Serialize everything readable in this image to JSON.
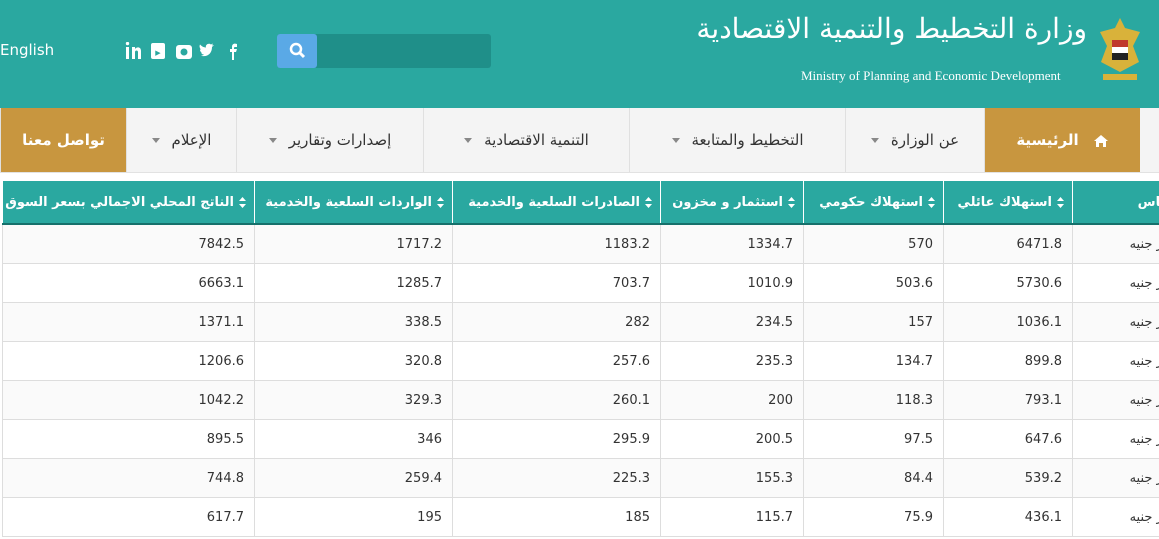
{
  "header": {
    "language_link": "English",
    "ministry_name_ar": "وزارة التخطيط والتنمية الاقتصادية",
    "ministry_name_en": "Ministry of Planning and Economic Development"
  },
  "nav": {
    "items": [
      "الرئيسية",
      "عن الوزارة",
      "التخطيط والمتابعة",
      "التنمية الاقتصادية",
      "إصدارات وتقارير",
      "الإعلام"
    ],
    "contact": "تواصل معنا"
  },
  "table": {
    "columns": [
      "القياس",
      "استهلاك عائلي",
      "استهلاك حكومي",
      "استثمار و مخزون",
      "الصادرات السلعية والخدمية",
      "الواردات السلعية والخدمية",
      "الناتج المحلي الاجمالي بسعر السوق"
    ],
    "rows": [
      [
        "مليار جنيه",
        6471.8,
        570,
        1334.7,
        1183.2,
        1717.2,
        7842.5
      ],
      [
        "مليار جنيه",
        5730.6,
        503.6,
        1010.9,
        703.7,
        1285.7,
        6663.1
      ],
      [
        "مليار جنيه",
        1036.1,
        157,
        234.5,
        282,
        338.5,
        1371.1
      ],
      [
        "مليار جنيه",
        899.8,
        134.7,
        235.3,
        257.6,
        320.8,
        1206.6
      ],
      [
        "مليار جنيه",
        793.1,
        118.3,
        200,
        260.1,
        329.3,
        1042.2
      ],
      [
        "مليار جنيه",
        647.6,
        97.5,
        200.5,
        295.9,
        346,
        895.5
      ],
      [
        "مليار جنيه",
        539.2,
        84.4,
        155.3,
        225.3,
        259.4,
        744.8
      ],
      [
        "مليار جنيه",
        436.1,
        75.9,
        115.7,
        185,
        195,
        617.7
      ]
    ]
  }
}
